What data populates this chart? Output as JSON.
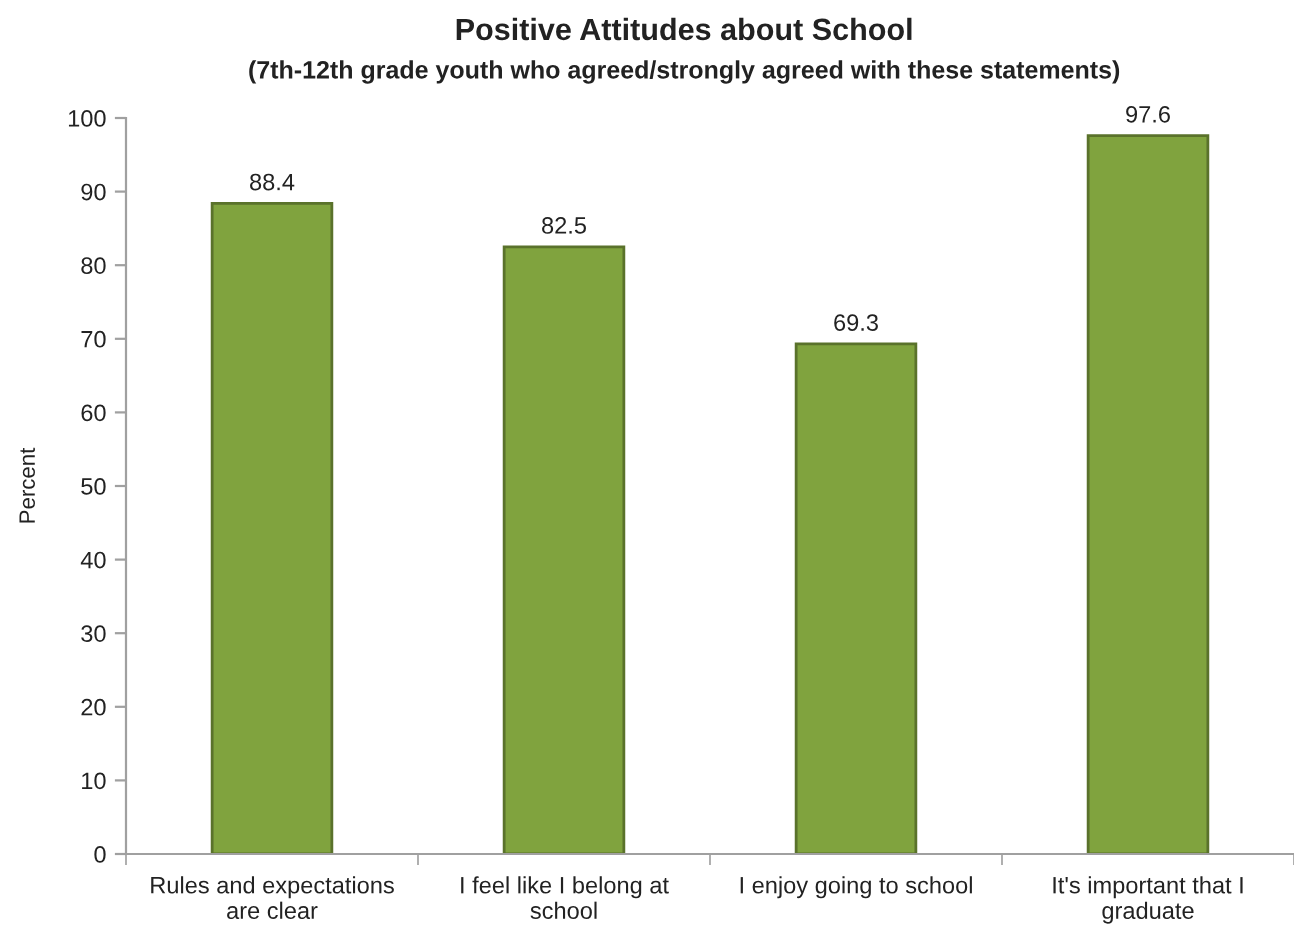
{
  "chart_data": {
    "type": "bar",
    "title": "Positive Attitudes about School",
    "subtitle": "(7th-12th grade youth who agreed/strongly agreed with these statements)",
    "ylabel": "Percent",
    "categories": [
      "Rules and expectations are clear",
      "I feel like I belong at school",
      "I enjoy going to school",
      "It's important that I graduate"
    ],
    "values": [
      88.4,
      82.5,
      69.3,
      97.6
    ],
    "color": "#80a33e",
    "ylim": [
      0,
      100
    ],
    "yticks": [
      0,
      10,
      20,
      30,
      40,
      50,
      60,
      70,
      80,
      90,
      100
    ],
    "grid": false,
    "legend": false,
    "data_labels": true
  }
}
